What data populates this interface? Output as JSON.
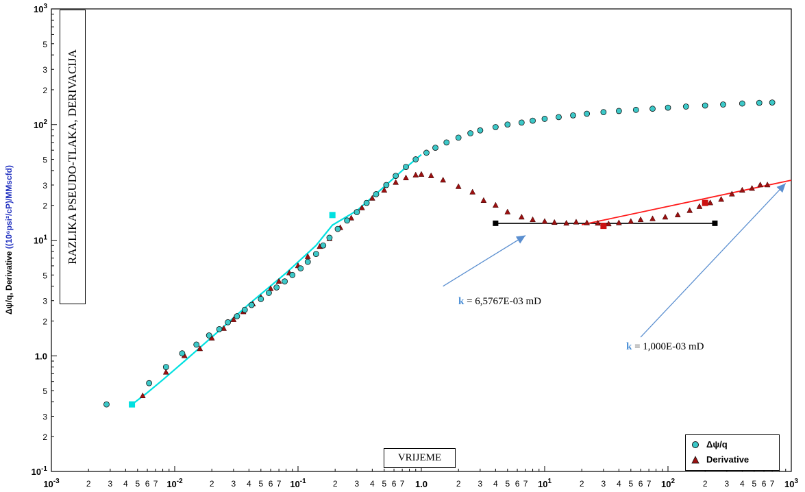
{
  "y_axis_label_black": "Δψ/q, Derivative",
  "y_axis_label_blue": "((10⁶psi²/cP)/MMscfd)",
  "y_title_box": "RAZLIKA PSEUDO-TLAKA, DERIVACIJA",
  "x_title_box": "VRIJEME",
  "annotation_1": {
    "k": "k",
    "text": " = 6,5767E-03 mD"
  },
  "annotation_2": {
    "k": "k",
    "text": " = 1,000E-03 mD"
  },
  "legend": {
    "series1": "Δψ/q",
    "series2": "Derivative"
  },
  "colors": {
    "series1_fill": "#3cc8c8",
    "series1_line": "#00e0e0",
    "series2": "#9b1010",
    "fit_line": "#ff1a1a",
    "arrow": "#5b8fd0",
    "grid": "#b9b9b9"
  },
  "chart_data": {
    "type": "scatter",
    "x_scale": "log",
    "y_scale": "log",
    "xlim": [
      0.001,
      1000
    ],
    "ylim": [
      0.1,
      1000
    ],
    "grid": true,
    "legend_position": "bottom-right",
    "x_major_ticks": [
      "10-3",
      "10-2",
      "10-1",
      "1.0",
      "101",
      "102",
      "103"
    ],
    "x_minor_labels": [
      "2",
      "3",
      "4",
      "5",
      "6",
      "7"
    ],
    "y_major_ticks": [
      "10-1",
      "1.0",
      "101",
      "102",
      "103"
    ],
    "y_minor_labels": [
      "2",
      "3",
      "5"
    ],
    "series": [
      {
        "name": "Δψ/q",
        "marker": "circle",
        "points": [
          [
            0.0028,
            0.38
          ],
          [
            0.0062,
            0.58
          ],
          [
            0.0085,
            0.8
          ],
          [
            0.0115,
            1.05
          ],
          [
            0.015,
            1.25
          ],
          [
            0.019,
            1.5
          ],
          [
            0.023,
            1.7
          ],
          [
            0.027,
            1.95
          ],
          [
            0.032,
            2.2
          ],
          [
            0.037,
            2.5
          ],
          [
            0.042,
            2.75
          ],
          [
            0.05,
            3.1
          ],
          [
            0.058,
            3.5
          ],
          [
            0.067,
            3.9
          ],
          [
            0.078,
            4.4
          ],
          [
            0.09,
            5.0
          ],
          [
            0.105,
            5.7
          ],
          [
            0.12,
            6.5
          ],
          [
            0.14,
            7.6
          ],
          [
            0.16,
            9.0
          ],
          [
            0.18,
            10.5
          ],
          [
            0.21,
            12.5
          ],
          [
            0.25,
            14.8
          ],
          [
            0.3,
            17.5
          ],
          [
            0.36,
            21
          ],
          [
            0.43,
            25
          ],
          [
            0.52,
            30
          ],
          [
            0.62,
            36
          ],
          [
            0.75,
            43
          ],
          [
            0.9,
            50
          ],
          [
            1.1,
            57
          ],
          [
            1.3,
            63
          ],
          [
            1.6,
            70
          ],
          [
            2.0,
            77
          ],
          [
            2.5,
            84
          ],
          [
            3.0,
            89
          ],
          [
            4.0,
            95
          ],
          [
            5.0,
            100
          ],
          [
            6.5,
            104
          ],
          [
            8.0,
            108
          ],
          [
            10,
            112
          ],
          [
            13,
            116
          ],
          [
            17,
            120
          ],
          [
            22,
            124
          ],
          [
            30,
            128
          ],
          [
            40,
            131
          ],
          [
            55,
            134
          ],
          [
            75,
            137
          ],
          [
            100,
            140
          ],
          [
            140,
            143
          ],
          [
            200,
            146
          ],
          [
            280,
            149
          ],
          [
            400,
            152
          ],
          [
            550,
            154
          ],
          [
            700,
            155
          ]
        ],
        "fit_line": [
          [
            0.0045,
            0.38
          ],
          [
            0.006,
            0.48
          ],
          [
            0.008,
            0.62
          ],
          [
            0.012,
            0.9
          ],
          [
            0.02,
            1.45
          ],
          [
            0.04,
            2.8
          ],
          [
            0.08,
            5.2
          ],
          [
            0.14,
            9.0
          ],
          [
            0.19,
            13.5
          ],
          [
            0.3,
            18
          ],
          [
            0.5,
            29
          ],
          [
            0.7,
            40
          ],
          [
            1.0,
            55
          ]
        ]
      },
      {
        "name": "Derivative",
        "marker": "triangle",
        "points": [
          [
            0.0055,
            0.45
          ],
          [
            0.0085,
            0.72
          ],
          [
            0.012,
            1.0
          ],
          [
            0.016,
            1.15
          ],
          [
            0.02,
            1.42
          ],
          [
            0.025,
            1.72
          ],
          [
            0.03,
            2.05
          ],
          [
            0.036,
            2.4
          ],
          [
            0.043,
            2.8
          ],
          [
            0.05,
            3.2
          ],
          [
            0.06,
            3.8
          ],
          [
            0.07,
            4.4
          ],
          [
            0.085,
            5.2
          ],
          [
            0.1,
            6.0
          ],
          [
            0.12,
            7.2
          ],
          [
            0.15,
            8.8
          ],
          [
            0.18,
            10.3
          ],
          [
            0.22,
            12.8
          ],
          [
            0.27,
            15.5
          ],
          [
            0.33,
            19
          ],
          [
            0.4,
            23
          ],
          [
            0.5,
            27
          ],
          [
            0.62,
            31.5
          ],
          [
            0.75,
            34.5
          ],
          [
            0.9,
            36.5
          ],
          [
            1.0,
            37
          ],
          [
            1.2,
            36
          ],
          [
            1.5,
            33
          ],
          [
            2.0,
            29
          ],
          [
            2.6,
            26
          ],
          [
            3.2,
            22
          ],
          [
            4.0,
            20
          ],
          [
            5.0,
            17.5
          ],
          [
            6.5,
            15.8
          ],
          [
            8.0,
            15
          ],
          [
            10,
            14.5
          ],
          [
            12,
            14.2
          ],
          [
            15,
            14.0
          ],
          [
            18,
            14.3
          ],
          [
            22,
            14.1
          ],
          [
            27,
            14.0
          ],
          [
            33,
            13.8
          ],
          [
            40,
            14.1
          ],
          [
            50,
            14.5
          ],
          [
            60,
            15.0
          ],
          [
            75,
            15.3
          ],
          [
            95,
            15.8
          ],
          [
            120,
            16.5
          ],
          [
            150,
            18
          ],
          [
            180,
            19.5
          ],
          [
            220,
            21
          ],
          [
            270,
            22.5
          ],
          [
            330,
            25
          ],
          [
            400,
            27
          ],
          [
            480,
            28
          ],
          [
            560,
            30
          ],
          [
            640,
            30
          ]
        ]
      }
    ],
    "markers": [
      {
        "series": "Δψ/q",
        "color": "#00e0e0",
        "points": [
          [
            0.0045,
            0.38
          ],
          [
            0.19,
            16.5
          ]
        ]
      },
      {
        "series": "Derivative",
        "color": "#cc1111",
        "points": [
          [
            30,
            13.3
          ],
          [
            200,
            21
          ]
        ]
      }
    ],
    "fit_lines": [
      {
        "label": "k = 6,5767E-03 mD",
        "color": "#000000",
        "points": [
          [
            4.0,
            14.0
          ],
          [
            240,
            14.0
          ]
        ]
      },
      {
        "label": "k = 1,000E-03 mD",
        "color": "#ff1a1a",
        "points": [
          [
            20,
            13.6
          ],
          [
            1000,
            33
          ]
        ]
      }
    ],
    "arrows": [
      {
        "from": [
          1.5,
          4.0
        ],
        "to": [
          7.0,
          11.0
        ]
      },
      {
        "from": [
          60,
          1.45
        ],
        "to": [
          900,
          31
        ]
      }
    ]
  }
}
